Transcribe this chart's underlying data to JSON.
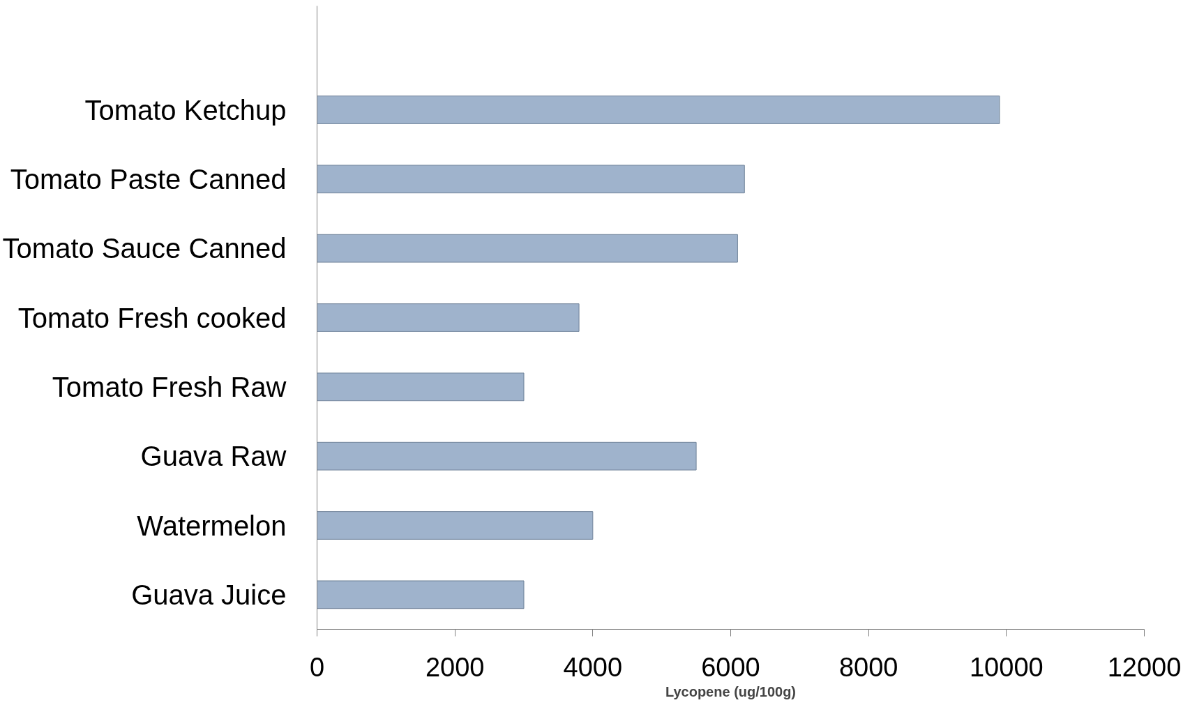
{
  "chart_data": {
    "type": "bar",
    "orientation": "horizontal",
    "xlabel": "Lycopene (ug/100g)",
    "categories": [
      null,
      "Tomato Ketchup",
      "Tomato Paste Canned",
      "Tomato Sauce Canned",
      "Tomato Fresh cooked",
      "Tomato Fresh Raw",
      "Guava Raw",
      "Watermelon",
      "Guava Juice"
    ],
    "values": [
      null,
      9900,
      6200,
      6100,
      3800,
      3000,
      5500,
      4000,
      3000
    ],
    "color": "#9fb3cc",
    "xlim": [
      0,
      12000
    ],
    "xticks": [
      0,
      2000,
      4000,
      6000,
      8000,
      10000,
      12000
    ],
    "grid": false
  }
}
